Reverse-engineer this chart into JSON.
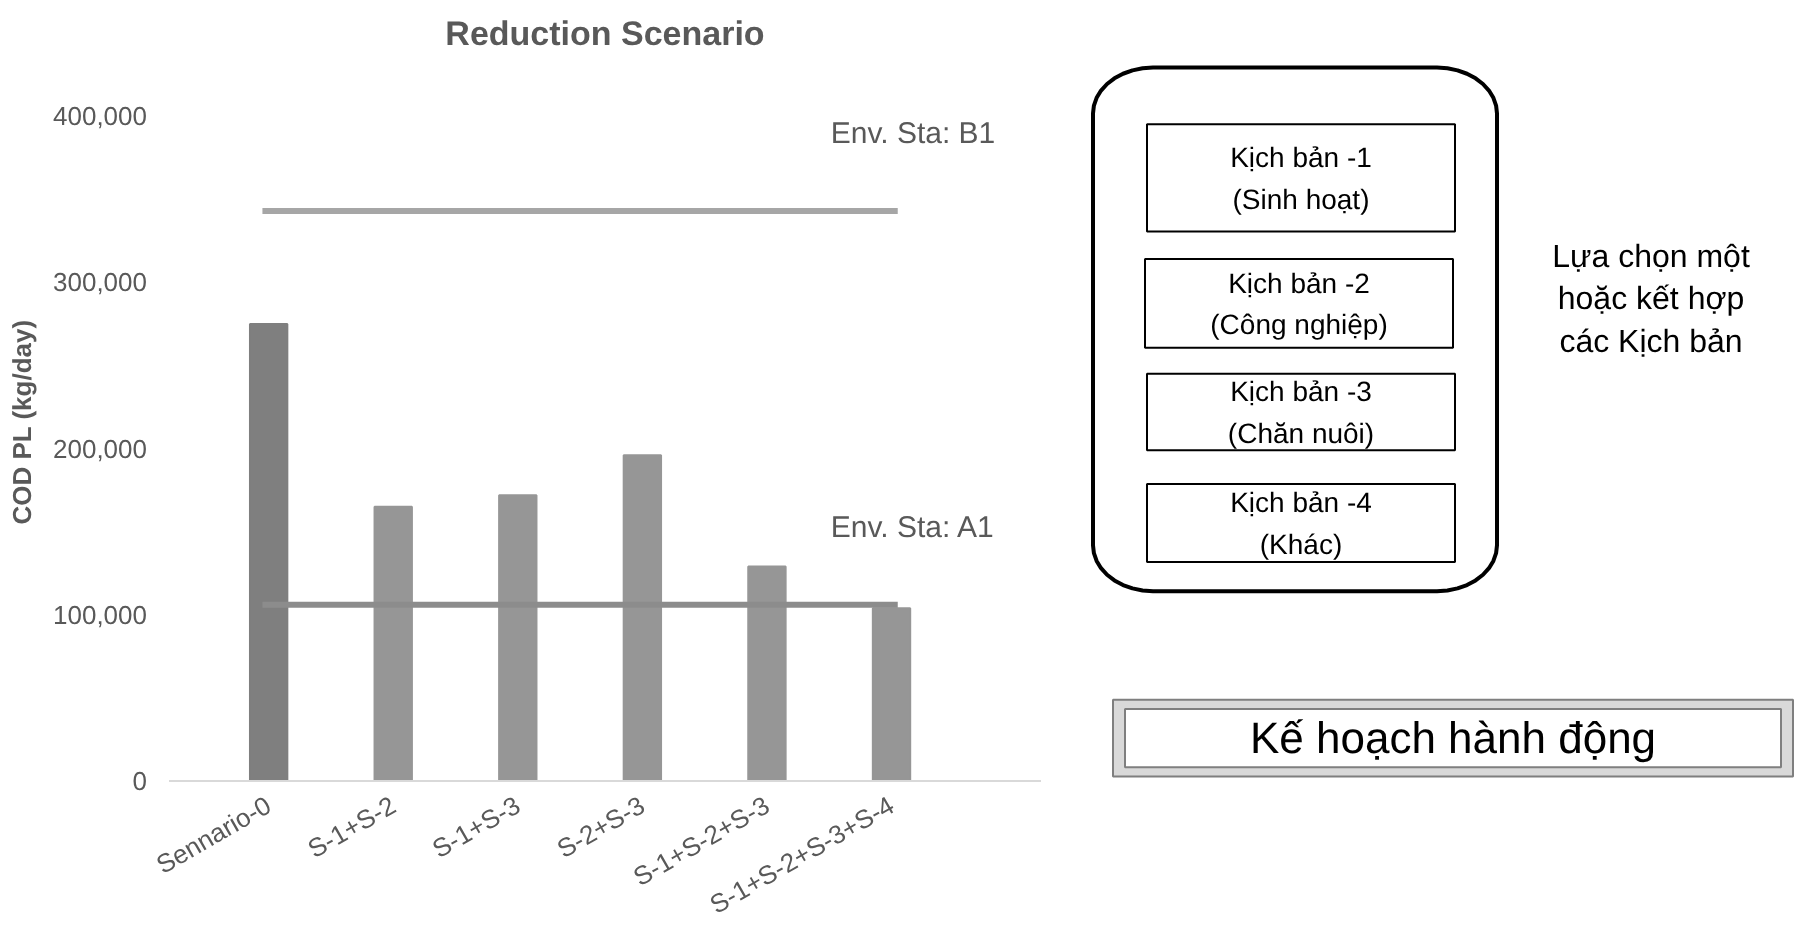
{
  "chart_data": [
    {
      "type": "bar",
      "title": "Reduction Scenario",
      "ylabel": "COD PL (kg/day)",
      "categories": [
        "Sennario-0",
        "S-1+S-2",
        "S-1+S-3",
        "S-2+S-3",
        "S-1+S-2+S-3",
        "S-1+S-2+S-3+S-4"
      ],
      "values": [
        275000,
        165000,
        172000,
        196000,
        129000,
        104000
      ],
      "colors": [
        "#7f7f7f",
        "#969696",
        "#969696",
        "#969696",
        "#969696",
        "#969696"
      ],
      "ylim": [
        0,
        400000
      ],
      "yticks": [
        {
          "value": 0,
          "label": "0"
        },
        {
          "value": 100000,
          "label": "100,000"
        },
        {
          "value": 200000,
          "label": "200,000"
        },
        {
          "value": 300000,
          "label": "300,000"
        },
        {
          "value": 400000,
          "label": "400,000"
        }
      ],
      "ref_lines": [
        {
          "axis": "y",
          "value": 343000,
          "label": "Env. Sta:  B1",
          "color": "#a6a6a6"
        },
        {
          "axis": "y",
          "value": 106000,
          "label": "Env. Sta:  A1",
          "color": "#8c8c8c"
        }
      ],
      "grid": false
    },
    {
      "type": "other",
      "annotations": [
        "Kịch bản -1\n(Sinh hoạt)",
        "Kịch bản -2\n(Công nghiệp)",
        "Kịch bản -3\n(Chăn nuôi)",
        "Kịch bản -4\n(Khác)",
        "Lựa chọn một\nhoặc kết hợp\ncác Kịch bản",
        "Kế hoạch hành động"
      ]
    }
  ]
}
